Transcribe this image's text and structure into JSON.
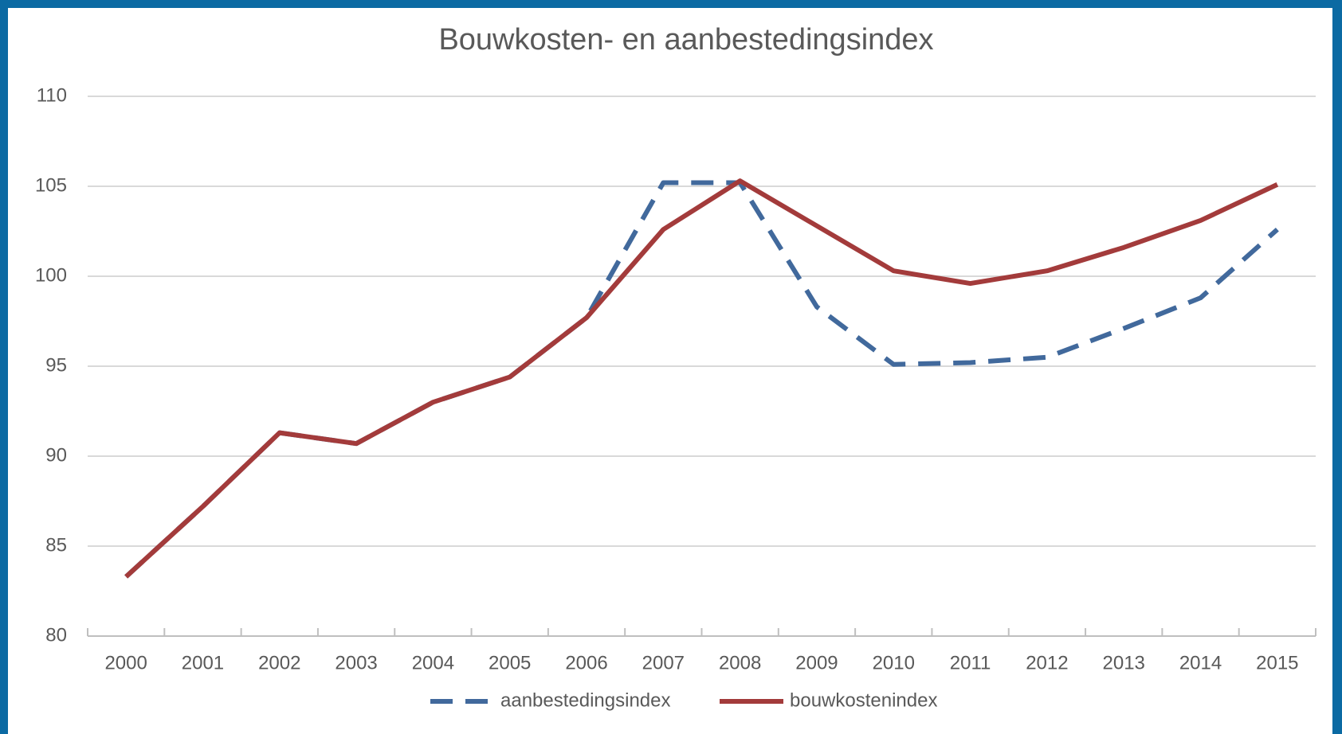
{
  "chart_data": {
    "type": "line",
    "title": "Bouwkosten- en aanbestedingsindex",
    "categories": [
      "2000",
      "2001",
      "2002",
      "2003",
      "2004",
      "2005",
      "2006",
      "2007",
      "2008",
      "2009",
      "2010",
      "2011",
      "2012",
      "2013",
      "2014",
      "2015"
    ],
    "series": [
      {
        "name": "aanbestedingsindex",
        "color": "#41699c",
        "dashed": true,
        "values": [
          83.3,
          87.2,
          91.3,
          90.7,
          93.0,
          94.4,
          97.7,
          105.2,
          105.2,
          98.3,
          95.1,
          95.2,
          95.5,
          97.1,
          98.8,
          102.6
        ]
      },
      {
        "name": "bouwkostenindex",
        "color": "#a33b3b",
        "dashed": false,
        "values": [
          83.3,
          87.2,
          91.3,
          90.7,
          93.0,
          94.4,
          97.7,
          102.6,
          105.3,
          102.8,
          100.3,
          99.6,
          100.3,
          101.6,
          103.1,
          105.1
        ]
      }
    ],
    "ylim": [
      80,
      110
    ],
    "yticks": [
      80,
      85,
      90,
      95,
      100,
      105,
      110
    ],
    "grid": true,
    "legend": "bottom"
  }
}
